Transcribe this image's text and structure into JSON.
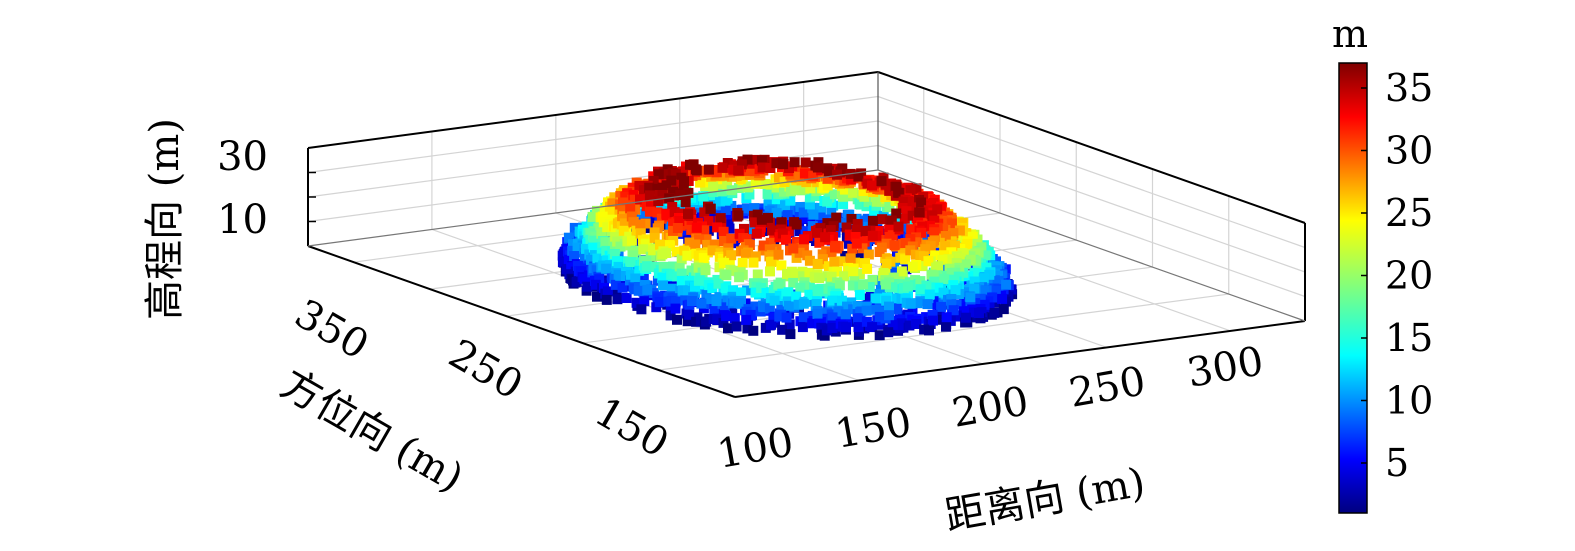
{
  "chart_data": {
    "type": "scatter",
    "projection": "3d",
    "zlabel": "高程向 (m)",
    "ylabel": "方位向 (m)",
    "xlabel": "距离向 (m)",
    "range_ticks": [
      "100",
      "150",
      "200",
      "250",
      "300"
    ],
    "azimuth_ticks": [
      "150",
      "250",
      "350"
    ],
    "z_ticks": [
      "10",
      "30"
    ],
    "colorbar": {
      "unit": "m",
      "ticks": [
        "5",
        "10",
        "15",
        "20",
        "25",
        "30",
        "35"
      ],
      "range": [
        1,
        37
      ],
      "colormap": "jet"
    },
    "grid": true,
    "point_cloud": {
      "x_range": [
        140,
        280
      ],
      "y_range": [
        150,
        340
      ],
      "z_range": [
        0,
        37
      ],
      "description_shape": "ring"
    }
  }
}
